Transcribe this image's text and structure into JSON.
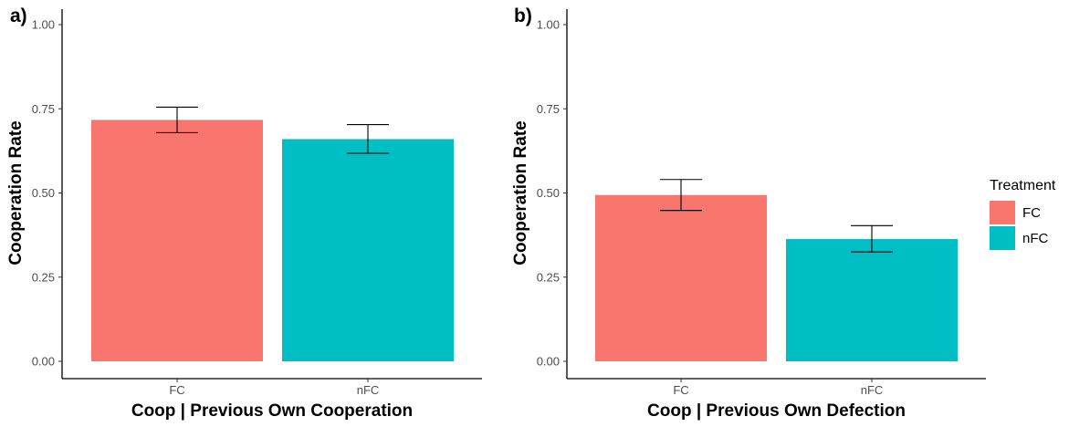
{
  "chart_data": [
    {
      "panel_label": "a)",
      "type": "bar",
      "categories": [
        "FC",
        "nFC"
      ],
      "values": [
        0.717,
        0.66
      ],
      "error_low": [
        0.679,
        0.618
      ],
      "error_high": [
        0.755,
        0.703
      ],
      "xlabel": "Coop | Previous Own Cooperation",
      "ylabel": "Cooperation Rate",
      "ylim": [
        0,
        1
      ],
      "yticks": [
        "0.00",
        "0.25",
        "0.50",
        "0.75",
        "1.00"
      ]
    },
    {
      "panel_label": "b)",
      "type": "bar",
      "categories": [
        "FC",
        "nFC"
      ],
      "values": [
        0.494,
        0.363
      ],
      "error_low": [
        0.448,
        0.325
      ],
      "error_high": [
        0.54,
        0.403
      ],
      "xlabel": "Coop | Previous Own Defection",
      "ylabel": "Cooperation Rate",
      "ylim": [
        0,
        1
      ],
      "yticks": [
        "0.00",
        "0.25",
        "0.50",
        "0.75",
        "1.00"
      ]
    }
  ],
  "legend": {
    "title": "Treatment",
    "entries": [
      {
        "label": "FC",
        "color": "#F8766D"
      },
      {
        "label": "nFC",
        "color": "#00BFC4"
      }
    ]
  }
}
